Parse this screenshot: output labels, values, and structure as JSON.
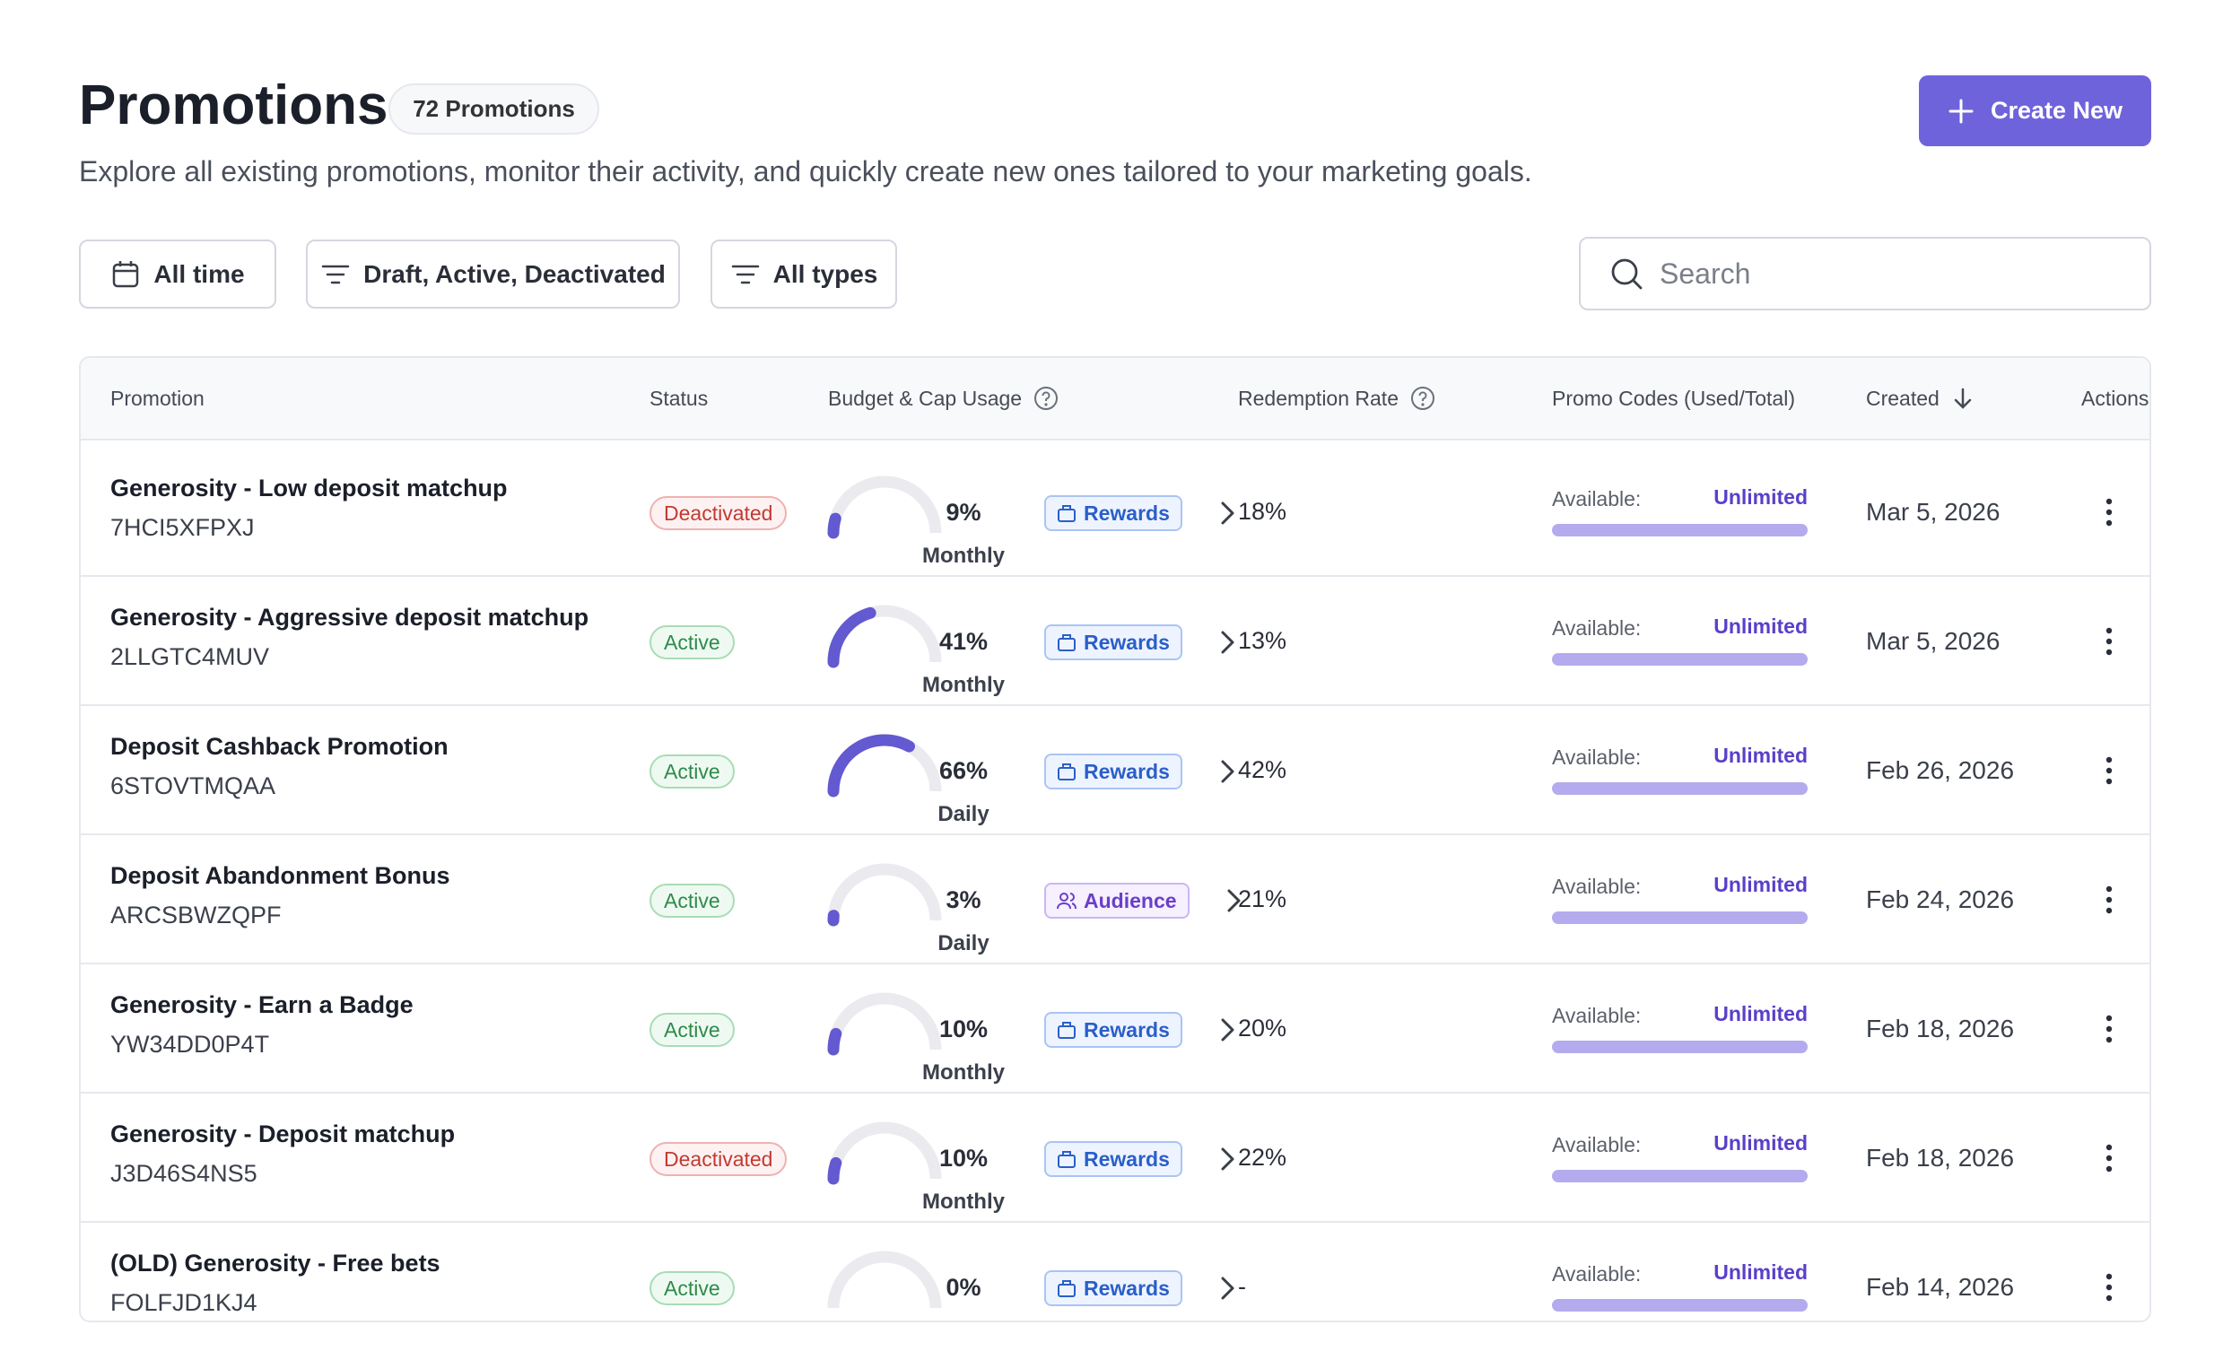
{
  "header": {
    "title": "Promotions",
    "count": "72 Promotions",
    "subtitle": "Explore all existing promotions, monitor their activity, and quickly create new ones tailored to your marketing goals.",
    "create": "Create New"
  },
  "filters": [
    "All time",
    "Draft, Active, Deactivated",
    "All types"
  ],
  "search": "Search",
  "table": {
    "columns": [
      "Promotion",
      "Status",
      "Budget & Cap Usage",
      "Redemption Rate",
      "Promo Codes (Used/Total)",
      "Created",
      "Actions"
    ],
    "available_label": "Available:",
    "unlimited_label": "Unlimited",
    "rows": [
      {
        "name": "Generosity - Low deposit matchup",
        "code": "7HCI5XFPXJ",
        "status": "Deactivated",
        "usage": 9,
        "usage_label": "9%",
        "period": "Monthly",
        "tag": "Rewards",
        "rate": "18%",
        "created": "Mar 5, 2026"
      },
      {
        "name": "Generosity - Aggressive deposit matchup",
        "code": "2LLGTC4MUV",
        "status": "Active",
        "usage": 41,
        "usage_label": "41%",
        "period": "Monthly",
        "tag": "Rewards",
        "rate": "13%",
        "created": "Mar 5, 2026"
      },
      {
        "name": "Deposit Cashback Promotion",
        "code": "6STOVTMQAA",
        "status": "Active",
        "usage": 66,
        "usage_label": "66%",
        "period": "Daily",
        "tag": "Rewards",
        "rate": "42%",
        "created": "Feb 26, 2026"
      },
      {
        "name": "Deposit Abandonment Bonus",
        "code": "ARCSBWZQPF",
        "status": "Active",
        "usage": 3,
        "usage_label": "3%",
        "period": "Daily",
        "tag": "Audience",
        "rate": "21%",
        "created": "Feb 24, 2026"
      },
      {
        "name": "Generosity - Earn a Badge",
        "code": "YW34DD0P4T",
        "status": "Active",
        "usage": 10,
        "usage_label": "10%",
        "period": "Monthly",
        "tag": "Rewards",
        "rate": "20%",
        "created": "Feb 18, 2026"
      },
      {
        "name": "Generosity - Deposit matchup",
        "code": "J3D46S4NS5",
        "status": "Deactivated",
        "usage": 10,
        "usage_label": "10%",
        "period": "Monthly",
        "tag": "Rewards",
        "rate": "22%",
        "created": "Feb 18, 2026"
      },
      {
        "name": "(OLD) Generosity - Free bets",
        "code": "FOLFJD1KJ4",
        "status": "Active",
        "usage": 0,
        "usage_label": "0%",
        "tag": "Rewards",
        "rate": "-",
        "created": "Feb 14, 2026"
      }
    ]
  }
}
